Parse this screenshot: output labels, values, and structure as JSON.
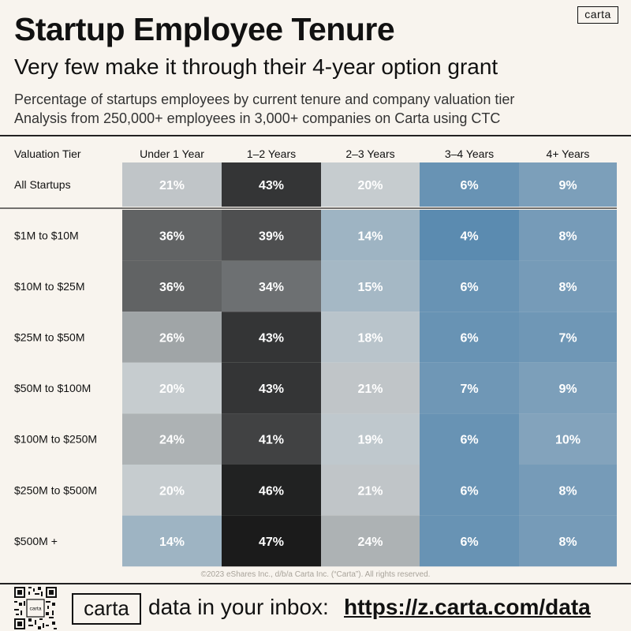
{
  "brand": {
    "logo_text": "carta"
  },
  "header": {
    "title": "Startup Employee Tenure",
    "subtitle": "Very few make it through their 4-year option grant",
    "description_line1": "Percentage of startups employees by current tenure and company valuation tier",
    "description_line2": "Analysis from 250,000+ employees in 3,000+ companies on Carta using CTC"
  },
  "chart_data": {
    "type": "heatmap",
    "row_header": "Valuation Tier",
    "columns": [
      "Under 1 Year",
      "1–2 Years",
      "2–3 Years",
      "3–4 Years",
      "4+ Years"
    ],
    "rows": [
      {
        "label": "All Startups",
        "values": [
          21,
          43,
          20,
          6,
          9
        ]
      },
      {
        "label": "$1M to $10M",
        "values": [
          36,
          39,
          14,
          4,
          8
        ]
      },
      {
        "label": "$10M to $25M",
        "values": [
          36,
          34,
          15,
          6,
          8
        ]
      },
      {
        "label": "$25M to $50M",
        "values": [
          26,
          43,
          18,
          6,
          7
        ]
      },
      {
        "label": "$50M to $100M",
        "values": [
          20,
          43,
          21,
          7,
          9
        ]
      },
      {
        "label": "$100M to $250M",
        "values": [
          24,
          41,
          19,
          6,
          10
        ]
      },
      {
        "label": "$250M to $500M",
        "values": [
          20,
          46,
          21,
          6,
          8
        ]
      },
      {
        "label": "$500M +",
        "values": [
          14,
          47,
          24,
          6,
          8
        ]
      }
    ],
    "value_suffix": "%",
    "colors": {
      "low": "#5b8bb0",
      "mid": "#c6cccf",
      "high": "#1b1b1b"
    }
  },
  "footer": {
    "copyright": "©2023 eShares Inc., d/b/a Carta Inc. (“Carta”). All rights reserved.",
    "logo_text": "carta",
    "cta_text": "data in your inbox:",
    "link_text": "https://z.carta.com/data",
    "qr_label": "carta"
  }
}
